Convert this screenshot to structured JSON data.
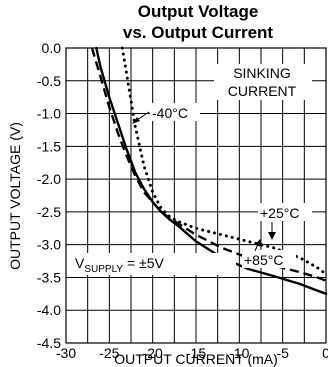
{
  "chart_data": {
    "type": "line",
    "title_line1": "Output Voltage",
    "title_line2": "vs. Output Current",
    "xlabel": "OUTPUT CURRENT (mA)",
    "ylabel": "OUTPUT VOLTAGE (V)",
    "xlim": [
      -30,
      0
    ],
    "ylim": [
      -4.5,
      0.0
    ],
    "x_ticks": [
      -30,
      -25,
      -20,
      -15,
      -10,
      -5,
      0
    ],
    "x_tick_labels": [
      "-30",
      "-25",
      "-20",
      "-15",
      "-10",
      "-5",
      "0"
    ],
    "y_ticks": [
      0.0,
      -0.5,
      -1.0,
      -1.5,
      -2.0,
      -2.5,
      -3.0,
      -3.5,
      -4.0,
      -4.5
    ],
    "y_tick_labels": [
      "0.0",
      "-0.5",
      "-1.0",
      "-1.5",
      "-2.0",
      "-2.5",
      "-3.0",
      "-3.5",
      "-4.0",
      "-4.5"
    ],
    "grid": true,
    "annotations": {
      "mode": "SINKING",
      "mode2": "CURRENT",
      "supply_prefix": "V",
      "supply_sub": "SUPPLY",
      "supply_suffix": " = ±5V",
      "temp_cold": "-40°C",
      "temp_room": "+25°C",
      "temp_hot": "+85°C"
    },
    "series": [
      {
        "name": "-40°C",
        "style": "dotted",
        "x": [
          -23.5,
          -23,
          -22,
          -21,
          -20,
          -19,
          -18,
          -17,
          -15,
          -12,
          -9,
          -6,
          -3,
          -1,
          0
        ],
        "y": [
          0.0,
          -0.4,
          -1.2,
          -1.8,
          -2.2,
          -2.45,
          -2.58,
          -2.65,
          -2.75,
          -2.85,
          -2.95,
          -3.05,
          -3.2,
          -3.35,
          -3.45
        ]
      },
      {
        "name": "+25°C",
        "style": "dashed",
        "x": [
          -27,
          -26,
          -25,
          -24,
          -23,
          -22,
          -21,
          -20,
          -19,
          -18,
          -17,
          -15,
          -12,
          -9,
          -6,
          -3,
          -1,
          0
        ],
        "y": [
          0.0,
          -0.45,
          -0.9,
          -1.3,
          -1.65,
          -1.95,
          -2.2,
          -2.35,
          -2.5,
          -2.6,
          -2.68,
          -2.85,
          -3.05,
          -3.2,
          -3.32,
          -3.42,
          -3.5,
          -3.55
        ]
      },
      {
        "name": "+85°C",
        "style": "solid",
        "x": [
          -26.5,
          -26,
          -25,
          -24,
          -23,
          -22,
          -21,
          -20,
          -19,
          -18,
          -17,
          -15,
          -12,
          -9,
          -6,
          -3,
          -1,
          0
        ],
        "y": [
          0.0,
          -0.3,
          -0.75,
          -1.15,
          -1.55,
          -1.9,
          -2.15,
          -2.35,
          -2.5,
          -2.62,
          -2.72,
          -2.95,
          -3.2,
          -3.37,
          -3.48,
          -3.6,
          -3.7,
          -3.75
        ]
      }
    ]
  }
}
